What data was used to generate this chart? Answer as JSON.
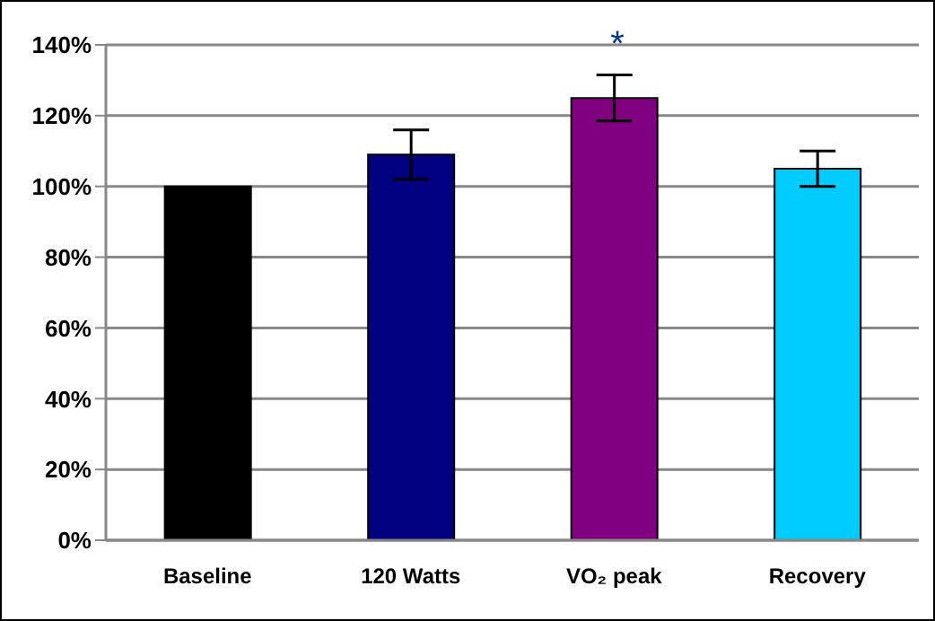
{
  "chart_data": {
    "type": "bar",
    "categories": [
      "Baseline",
      "120 Watts",
      "VO₂ peak",
      "Recovery"
    ],
    "values": [
      100,
      109,
      125,
      105
    ],
    "colors": [
      "#000000",
      "#000080",
      "#800080",
      "#00ccff"
    ],
    "errors": [
      null,
      7,
      6.5,
      5
    ],
    "ylim": [
      0,
      140
    ],
    "yticks": [
      {
        "value": 0,
        "label": "0%"
      },
      {
        "value": 20,
        "label": "20%"
      },
      {
        "value": 40,
        "label": "40%"
      },
      {
        "value": 60,
        "label": "60%"
      },
      {
        "value": 80,
        "label": "80%"
      },
      {
        "value": 100,
        "label": "100%"
      },
      {
        "value": 120,
        "label": "120%"
      },
      {
        "value": 140,
        "label": "140%"
      }
    ],
    "grid": "y",
    "annotations": [
      "*"
    ]
  }
}
